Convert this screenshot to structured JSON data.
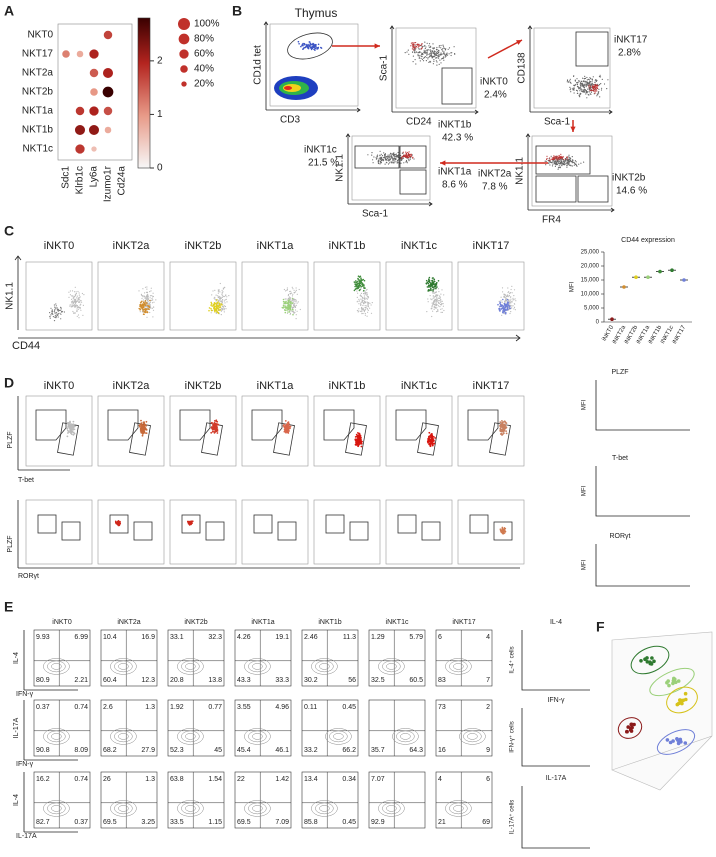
{
  "panels": {
    "A": {
      "letter": "A",
      "rows": [
        "NKT0",
        "NKT17",
        "NKT2a",
        "NKT2b",
        "NKT1a",
        "NKT1b",
        "NKT1c"
      ],
      "columns": [
        "Sdc1",
        "Klrb1c",
        "Ly6a",
        "Izumo1r",
        "Cd24a"
      ],
      "percent_expressed": [
        [
          0,
          0,
          0,
          50,
          0
        ],
        [
          40,
          30,
          60,
          0,
          0
        ],
        [
          0,
          0,
          50,
          70,
          0
        ],
        [
          0,
          0,
          40,
          80,
          0
        ],
        [
          0,
          50,
          60,
          50,
          0
        ],
        [
          0,
          70,
          70,
          30,
          0
        ],
        [
          0,
          60,
          20,
          0,
          0
        ]
      ],
      "mean_expression": [
        [
          0,
          0,
          0,
          1.7,
          0
        ],
        [
          1.2,
          0.8,
          2.0,
          0,
          0
        ],
        [
          0,
          0,
          1.5,
          2.0,
          0
        ],
        [
          0,
          0,
          1.0,
          2.8,
          0
        ],
        [
          0,
          1.8,
          2.0,
          1.6,
          0
        ],
        [
          0,
          2.2,
          2.2,
          0.8,
          0
        ],
        [
          0,
          1.8,
          0.6,
          0,
          0
        ]
      ],
      "colorbar_max": 2.8,
      "colorbar_ticks": [
        0,
        1,
        2
      ],
      "size_legend": [
        {
          "value": 100,
          "label": "100%"
        },
        {
          "value": 80,
          "label": "80%"
        },
        {
          "value": 60,
          "label": "60%"
        },
        {
          "value": 40,
          "label": "40%"
        },
        {
          "value": 20,
          "label": "20%"
        }
      ]
    },
    "B": {
      "letter": "B",
      "title": "Thymus",
      "plots": [
        {
          "y_label": "CD1d tet",
          "x_label": "CD3",
          "gates": []
        },
        {
          "y_label": "Sca-1",
          "x_label": "CD24",
          "gates": [
            {
              "name": "iNKT0",
              "percent": "2.4%"
            }
          ]
        },
        {
          "y_label": "CD138",
          "x_label": "Sca-1",
          "gates": [
            {
              "name": "iNKT17",
              "percent": "2.8%"
            }
          ]
        },
        {
          "y_label": "NK1.1",
          "x_label": "FR4",
          "gates": [
            {
              "name": "iNKT2a",
              "percent": "7.8 %"
            },
            {
              "name": "iNKT2b",
              "percent": "14.6 %"
            }
          ]
        },
        {
          "y_label": "NK1.1",
          "x_label": "Sca-1",
          "gates": [
            {
              "name": "iNKT1c",
              "percent": "21.5 %"
            },
            {
              "name": "iNKT1b",
              "percent": "42.3 %"
            },
            {
              "name": "iNKT1a",
              "percent": "8.6 %"
            }
          ]
        }
      ]
    },
    "C": {
      "letter": "C",
      "populations": [
        "iNKT0",
        "iNKT2a",
        "iNKT2b",
        "iNKT1a",
        "iNKT1b",
        "iNKT1c",
        "iNKT17"
      ],
      "y_label": "NK1.1",
      "x_label": "CD44",
      "chart": {
        "title": "CD44 expression",
        "y_label": "MFI",
        "ylim": [
          0,
          25000
        ],
        "yticks": [
          {
            "value": 0,
            "label": "0"
          },
          {
            "value": 5000,
            "label": "5,000"
          },
          {
            "value": 10000,
            "label": "10,000"
          },
          {
            "value": 15000,
            "label": "15,000"
          },
          {
            "value": 20000,
            "label": "20,000"
          },
          {
            "value": 25000,
            "label": "25,000"
          }
        ],
        "means": [
          1000,
          12500,
          16000,
          16000,
          18000,
          18500,
          15000
        ]
      }
    },
    "D": {
      "letter": "D",
      "populations": [
        "iNKT0",
        "iNKT2a",
        "iNKT2b",
        "iNKT1a",
        "iNKT1b",
        "iNKT1c",
        "iNKT17"
      ],
      "rows": [
        {
          "y_label": "PLZF",
          "x_label": "T-bet"
        },
        {
          "y_label": "PLZF",
          "x_label": "RORγt"
        }
      ],
      "charts": [
        {
          "title": "PLZF",
          "y_label": "MFI"
        },
        {
          "title": "T-bet",
          "y_label": "MFI"
        },
        {
          "title": "RORγt",
          "y_label": "MFI"
        }
      ]
    },
    "E": {
      "letter": "E",
      "populations": [
        "iNKT0",
        "iNKT2a",
        "iNKT2b",
        "iNKT1a",
        "iNKT1b",
        "iNKT1c",
        "iNKT17"
      ],
      "rows": [
        {
          "y_label": "IL-4",
          "x_label": "IFN-γ",
          "quadrants": [
            [
              "9.93",
              "6.99",
              "80.9",
              "2.21"
            ],
            [
              "10.4",
              "16.9",
              "60.4",
              "12.3"
            ],
            [
              "33.1",
              "32.3",
              "20.8",
              "13.8"
            ],
            [
              "4.26",
              "19.1",
              "43.3",
              "33.3"
            ],
            [
              "2.46",
              "11.3",
              "30.2",
              "56"
            ],
            [
              "1.29",
              "5.79",
              "32.5",
              "60.5"
            ],
            [
              "6",
              "4",
              "83",
              "7"
            ]
          ]
        },
        {
          "y_label": "IL-17A",
          "x_label": "IFN-γ",
          "quadrants": [
            [
              "0.37",
              "0.74",
              "90.8",
              "8.09"
            ],
            [
              "2.6",
              "1.3",
              "68.2",
              "27.9"
            ],
            [
              "1.92",
              "0.77",
              "52.3",
              "45"
            ],
            [
              "3.55",
              "4.96",
              "45.4",
              "46.1"
            ],
            [
              "0.11",
              "0.45",
              "33.2",
              "66.2"
            ],
            [
              null,
              null,
              "35.7",
              "64.3"
            ],
            [
              "73",
              "2",
              "16",
              "9"
            ]
          ]
        },
        {
          "y_label": "IL-4",
          "x_label": "IL-17A",
          "quadrants": [
            [
              "16.2",
              "0.74",
              "82.7",
              "0.37"
            ],
            [
              "26",
              "1.3",
              "69.5",
              "3.25"
            ],
            [
              "63.8",
              "1.54",
              "33.5",
              "1.15"
            ],
            [
              "22",
              "1.42",
              "69.5",
              "7.09"
            ],
            [
              "13.4",
              "0.34",
              "85.8",
              "0.45"
            ],
            [
              "7.07",
              null,
              "92.9",
              null
            ],
            [
              "4",
              "6",
              "21",
              "69"
            ]
          ]
        }
      ],
      "charts": [
        {
          "title": "IL-4",
          "y_label": "IL-4⁺ cells"
        },
        {
          "title": "IFN-γ",
          "y_label": "IFN-γ⁺ cells"
        },
        {
          "title": "IL-17A",
          "y_label": "IL-17A⁺ cells"
        }
      ]
    },
    "F": {
      "letter": "F"
    }
  }
}
